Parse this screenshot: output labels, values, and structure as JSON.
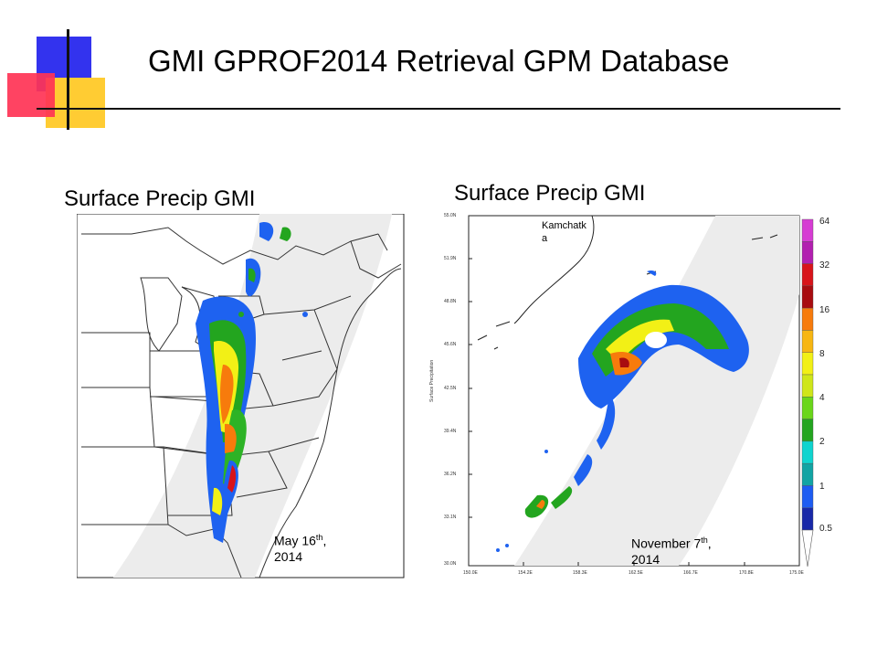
{
  "slide": {
    "title": "GMI  GPROF2014 Retrieval  GPM Database"
  },
  "left_panel": {
    "title": "Surface Precip   GMI",
    "date_main": "May 16",
    "date_sup": "th",
    "date_tail": ",",
    "date_year": "2014"
  },
  "right_panel": {
    "title": "Surface Precip   GMI",
    "region_label_line1": "Kamchatk",
    "region_label_line2": "a",
    "date_main": "November 7",
    "date_sup": "th",
    "date_tail": ",",
    "date_year": "2014",
    "y_axis_title": "Surface Precipitation",
    "lat_ticks": [
      "55.0N",
      "51.9N",
      "48.8N",
      "45.6N",
      "42.5N",
      "39.4N",
      "36.2N",
      "33.1N",
      "30.0N"
    ],
    "lon_ticks": [
      "150.0E",
      "154.2E",
      "158.3E",
      "162.5E",
      "166.7E",
      "170.8E",
      "175.0E"
    ]
  },
  "colorbar": {
    "labels": [
      "64",
      "32",
      "16",
      "8",
      "4",
      "2",
      "1",
      "0.5"
    ],
    "colors": [
      "#d63cd3",
      "#b21fb0",
      "#d8141a",
      "#a80c10",
      "#f77b0c",
      "#f7b612",
      "#f2f016",
      "#cfe61a",
      "#6ad61a",
      "#23a51f",
      "#0fd4cf",
      "#12a4a4",
      "#1d5cf2",
      "#1828a8"
    ]
  }
}
